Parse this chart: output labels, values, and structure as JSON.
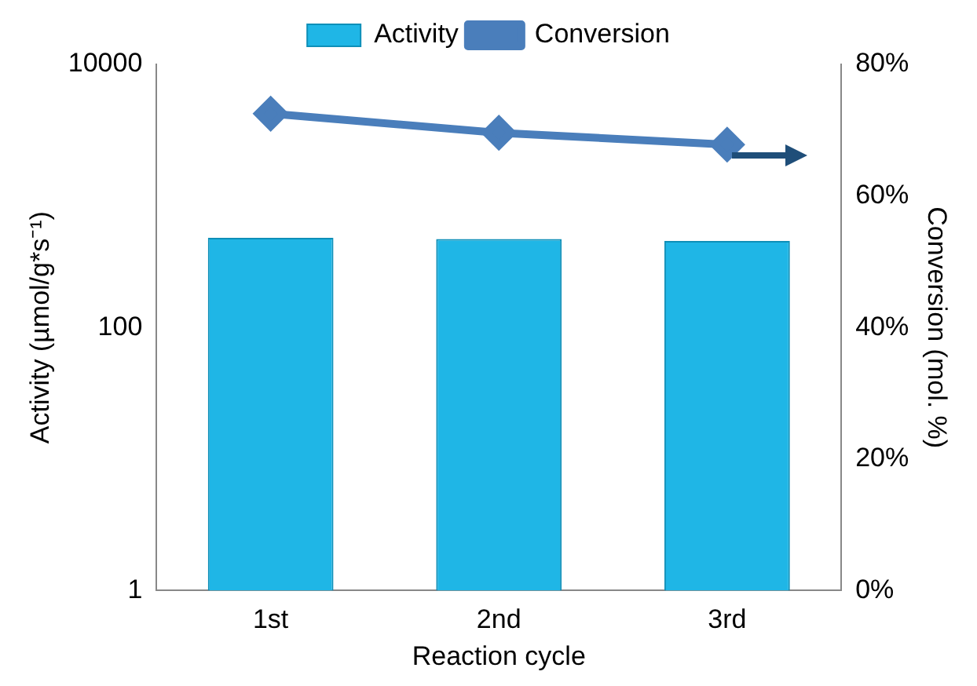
{
  "chart_data": {
    "type": "bar",
    "categories": [
      "1st",
      "2nd",
      "3rd"
    ],
    "series": [
      {
        "name": "Activity",
        "color": "#1fb6e6",
        "values": [
          480,
          470,
          455
        ]
      },
      {
        "name": "Conversion",
        "type": "line",
        "axis": "y2",
        "color": "#4a7ebb",
        "values": [
          72.5,
          69.6,
          67.8
        ]
      }
    ],
    "xlabel": "Reaction cycle",
    "ylabel": "Activity (µmol/g*s⁻¹)",
    "y2label": "Conversion (mol. %)",
    "log": "y",
    "ylim": [
      1,
      10000
    ],
    "yticks": [
      1,
      100,
      10000
    ],
    "y2lim": [
      0,
      80
    ],
    "y2ticks": [
      {
        "value": 0,
        "label": "0%"
      },
      {
        "value": 20,
        "label": "20%"
      },
      {
        "value": 40,
        "label": "40%"
      },
      {
        "value": 60,
        "label": "60%"
      },
      {
        "value": 80,
        "label": "80%"
      }
    ],
    "legend": "top",
    "marker": "diamond",
    "grid": false
  }
}
